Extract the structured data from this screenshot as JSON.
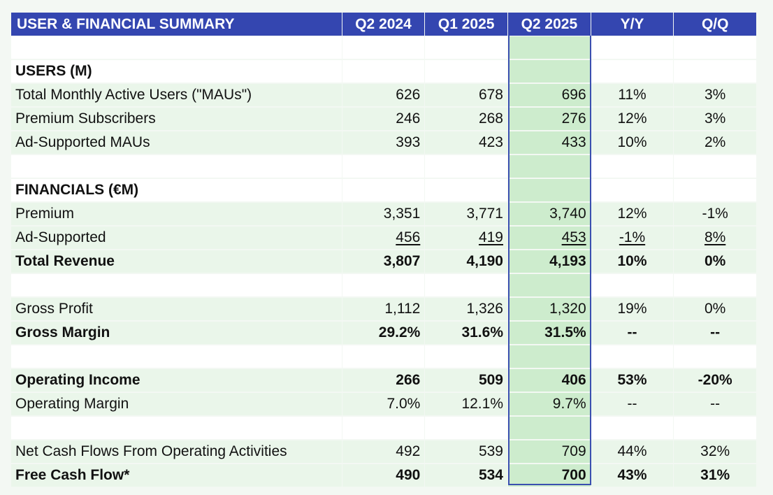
{
  "header": {
    "title": "USER & FINANCIAL SUMMARY",
    "columns": [
      "Q2 2024",
      "Q1 2025",
      "Q2 2025",
      "Y/Y",
      "Q/Q"
    ]
  },
  "colors": {
    "header_bg": "#3446b0",
    "row_bg": "#eaf6ea",
    "highlight_bg": "#cdeccd",
    "highlight_border": "#3a4fb0"
  },
  "rows": [
    {
      "type": "blank"
    },
    {
      "type": "section",
      "label": "USERS (M)"
    },
    {
      "type": "data",
      "label": "Total Monthly Active Users (\"MAUs\")",
      "values": [
        "626",
        "678",
        "696",
        "11%",
        "3%"
      ]
    },
    {
      "type": "data",
      "label": "Premium Subscribers",
      "values": [
        "246",
        "268",
        "276",
        "12%",
        "3%"
      ]
    },
    {
      "type": "data",
      "label": "Ad-Supported MAUs",
      "values": [
        "393",
        "423",
        "433",
        "10%",
        "2%"
      ]
    },
    {
      "type": "blank"
    },
    {
      "type": "section",
      "label": "FINANCIALS (€M)"
    },
    {
      "type": "data",
      "label": "Premium",
      "values": [
        "3,351",
        "3,771",
        "3,740",
        "12%",
        "-1%"
      ]
    },
    {
      "type": "data",
      "label": "Ad-Supported",
      "values": [
        "456",
        "419",
        "453",
        "-1%",
        "8%"
      ],
      "underline": true
    },
    {
      "type": "data",
      "label": "Total Revenue",
      "values": [
        "3,807",
        "4,190",
        "4,193",
        "10%",
        "0%"
      ],
      "bold": true
    },
    {
      "type": "blank"
    },
    {
      "type": "data",
      "label": "Gross Profit",
      "values": [
        "1,112",
        "1,326",
        "1,320",
        "19%",
        "0%"
      ]
    },
    {
      "type": "data",
      "label": "Gross Margin",
      "values": [
        "29.2%",
        "31.6%",
        "31.5%",
        "--",
        "--"
      ],
      "bold": true
    },
    {
      "type": "blank"
    },
    {
      "type": "data",
      "label": "Operating Income",
      "values": [
        "266",
        "509",
        "406",
        "53%",
        "-20%"
      ],
      "bold": true
    },
    {
      "type": "data",
      "label": "Operating Margin",
      "values": [
        "7.0%",
        "12.1%",
        "9.7%",
        "--",
        "--"
      ]
    },
    {
      "type": "blank"
    },
    {
      "type": "data",
      "label": "Net Cash Flows From Operating Activities",
      "values": [
        "492",
        "539",
        "709",
        "44%",
        "32%"
      ]
    },
    {
      "type": "data",
      "label": "Free Cash Flow*",
      "values": [
        "490",
        "534",
        "700",
        "43%",
        "31%"
      ],
      "bold": true
    }
  ]
}
